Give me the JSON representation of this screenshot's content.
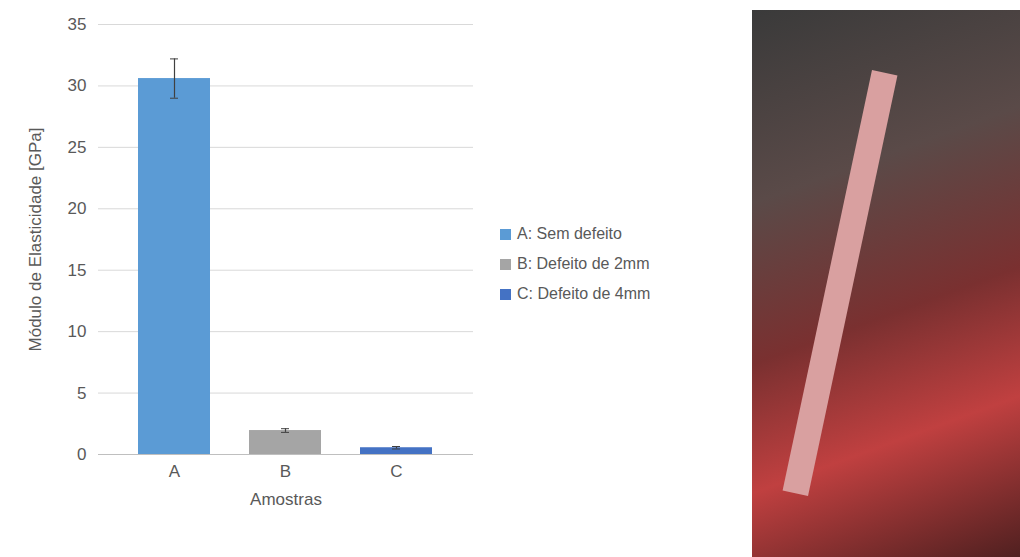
{
  "chart_data": {
    "type": "bar",
    "categories": [
      "A",
      "B",
      "C"
    ],
    "series": [
      {
        "name": "A: Sem defeito",
        "color": "#5b9bd5",
        "values": [
          30.6,
          null,
          null
        ],
        "errors": [
          1.6,
          null,
          null
        ]
      },
      {
        "name": "B: Defeito de 2mm",
        "color": "#a5a5a5",
        "values": [
          null,
          1.95,
          null
        ],
        "errors": [
          null,
          0.15,
          null
        ]
      },
      {
        "name": "C: Defeito de 4mm",
        "color": "#4472c4",
        "values": [
          null,
          null,
          0.55
        ],
        "errors": [
          null,
          null,
          0.1
        ]
      }
    ],
    "x_label": "Amostras",
    "y_label": "Módulo de Elasticidade [GPa]",
    "ylim": [
      0,
      35
    ],
    "yticks": [
      0,
      5,
      10,
      15,
      20,
      25,
      30,
      35
    ],
    "grid": true,
    "legend": "right"
  }
}
